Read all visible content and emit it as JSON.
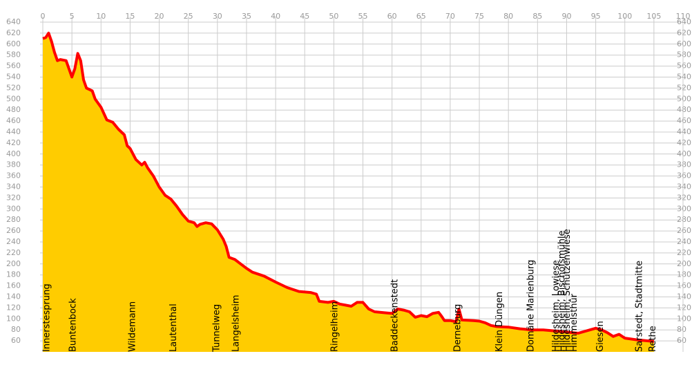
{
  "chart_data": {
    "type": "area",
    "x": [
      0,
      0.5,
      1,
      1.5,
      2,
      2.5,
      3,
      4,
      4.5,
      5,
      5.5,
      6,
      6.5,
      7,
      7.5,
      8.5,
      9,
      10,
      11,
      12,
      13,
      14,
      14.5,
      15,
      16,
      17,
      17.5,
      18,
      19,
      20,
      21,
      22,
      23,
      24,
      25,
      26,
      26.5,
      27,
      28,
      29,
      30,
      31,
      31.5,
      32,
      33,
      34,
      35,
      36,
      38,
      40,
      42,
      44,
      46,
      47,
      47.5,
      49,
      50,
      51,
      52,
      53,
      54,
      55,
      56,
      57,
      59,
      60,
      61,
      62,
      63,
      64,
      65,
      66,
      67,
      68,
      68.5,
      69,
      70,
      71,
      71.5,
      72,
      74,
      75,
      76,
      77,
      78,
      80,
      82,
      84,
      86,
      88,
      90,
      92,
      94,
      95,
      96,
      97,
      98,
      99,
      100,
      102,
      104,
      105
    ],
    "values": [
      610,
      612,
      620,
      605,
      585,
      570,
      572,
      570,
      555,
      540,
      555,
      583,
      570,
      535,
      520,
      515,
      500,
      485,
      462,
      458,
      445,
      435,
      415,
      410,
      390,
      380,
      385,
      375,
      360,
      340,
      325,
      318,
      305,
      290,
      278,
      275,
      268,
      272,
      275,
      273,
      262,
      245,
      232,
      212,
      208,
      200,
      192,
      185,
      178,
      167,
      157,
      150,
      148,
      145,
      132,
      130,
      132,
      127,
      125,
      123,
      130,
      130,
      118,
      113,
      111,
      110,
      118,
      116,
      113,
      103,
      106,
      104,
      110,
      112,
      105,
      97,
      97,
      95,
      118,
      98,
      97,
      96,
      93,
      88,
      86,
      85,
      82,
      80,
      80,
      78,
      76,
      74,
      80,
      83,
      80,
      75,
      68,
      72,
      65,
      62,
      60,
      59
    ],
    "line_color": "#ff0000",
    "fill_color": "#ffcc00",
    "grid": true,
    "xlim": [
      0,
      110
    ],
    "xticks": [
      0,
      5,
      10,
      15,
      20,
      25,
      30,
      35,
      40,
      45,
      50,
      55,
      60,
      65,
      70,
      75,
      80,
      85,
      90,
      95,
      100,
      105,
      110
    ],
    "ylim": [
      40,
      640
    ],
    "yticks": [
      60,
      80,
      100,
      120,
      140,
      160,
      180,
      200,
      220,
      240,
      260,
      280,
      300,
      320,
      340,
      360,
      380,
      400,
      420,
      440,
      460,
      480,
      500,
      520,
      540,
      560,
      580,
      600,
      620,
      640
    ],
    "stations": [
      {
        "name": "Innerstesprung",
        "km": 0
      },
      {
        "name": "Buntenbock",
        "km": 4.5
      },
      {
        "name": "Wildemann",
        "km": 14.7
      },
      {
        "name": "Lautenthal",
        "km": 21.8
      },
      {
        "name": "Tunnelweg",
        "km": 29.2
      },
      {
        "name": "Langelsheim",
        "km": 32.5
      },
      {
        "name": "Ringelheim",
        "km": 49.5
      },
      {
        "name": "Baddeckenstedt",
        "km": 59.8
      },
      {
        "name": "Derneburg",
        "km": 70.6
      },
      {
        "name": "Klein Düngen",
        "km": 77.8
      },
      {
        "name": "Domäne Marienburg",
        "km": 83.2
      },
      {
        "name": "Hildesheim, Lowiese",
        "km": 87.5
      },
      {
        "name": "Hildesheim, Bischofsmühle",
        "km": 88.5
      },
      {
        "name": "Hildesheim, Schützenwiese",
        "km": 89.4
      },
      {
        "name": "Himmelsthür",
        "km": 90.6
      },
      {
        "name": "Giesen",
        "km": 95.1
      },
      {
        "name": "Sarstedt, Stadtmitte",
        "km": 101.8
      },
      {
        "name": "Rethe",
        "km": 104.1
      }
    ]
  }
}
